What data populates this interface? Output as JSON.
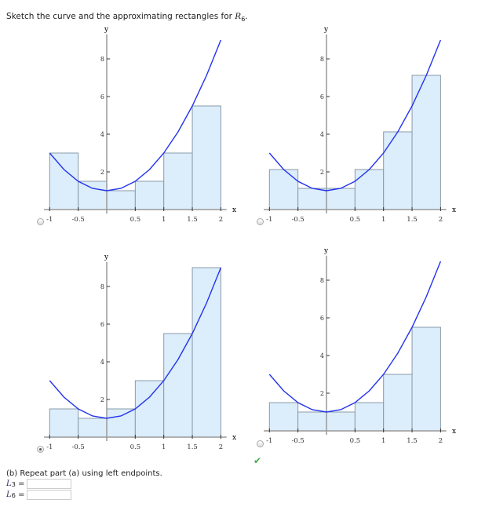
{
  "question": {
    "text": "Sketch the curve and the approximating rectangles for ",
    "var": "R",
    "sub": "6",
    "end": "."
  },
  "axis_labels": {
    "x": "x",
    "y": "y"
  },
  "x_ticks": [
    "-1",
    "-0.5",
    "0.5",
    "1",
    "1.5",
    "2"
  ],
  "y_ticks": [
    "2",
    "4",
    "6",
    "8"
  ],
  "colors": {
    "curve": "#2233ee",
    "rect_fill": "#dcedfb",
    "rect_stroke": "#8a9aa8",
    "check": "#44aa44"
  },
  "chart_data": [
    {
      "type": "bar+line",
      "option": 1,
      "selected": false,
      "intervals": [
        -1,
        -0.5,
        0,
        0.5,
        1,
        1.5,
        2
      ],
      "heights": [
        3,
        1.5,
        1,
        1.5,
        3,
        5.5
      ]
    },
    {
      "type": "bar+line",
      "option": 2,
      "selected": false,
      "intervals": [
        -1,
        -0.5,
        0,
        0.5,
        1,
        1.5,
        2
      ],
      "heights": [
        2.125,
        1.125,
        1.125,
        2.125,
        4.125,
        7.125
      ]
    },
    {
      "type": "bar+line",
      "option": 3,
      "selected": true,
      "intervals": [
        -1,
        -0.5,
        0,
        0.5,
        1,
        1.5,
        2
      ],
      "heights": [
        1.5,
        1,
        1.5,
        3,
        5.5,
        9
      ]
    },
    {
      "type": "bar+line",
      "option": 4,
      "selected": false,
      "intervals": [
        -1,
        -0.5,
        0,
        0.5,
        1,
        1.5,
        2
      ],
      "heights": [
        1.5,
        1,
        1,
        1.5,
        3,
        5.5
      ]
    }
  ],
  "curve": {
    "x": [
      -1,
      -0.75,
      -0.5,
      -0.25,
      0,
      0.25,
      0.5,
      0.75,
      1,
      1.25,
      1.5,
      1.75,
      2
    ],
    "y": [
      3,
      2.125,
      1.5,
      1.125,
      1,
      1.125,
      1.5,
      2.125,
      3,
      4.125,
      5.5,
      7.125,
      9
    ]
  },
  "part_b": {
    "text": "(b) Repeat part (a) using left endpoints.",
    "l3_label": "L",
    "l3_sub": "3",
    "l6_label": "L",
    "l6_sub": "6",
    "eq": "=",
    "l3_value": "",
    "l6_value": ""
  }
}
